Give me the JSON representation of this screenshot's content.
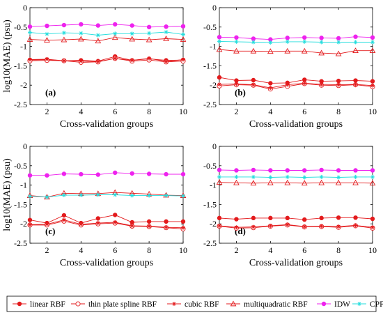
{
  "chart_data": [
    {
      "type": "line",
      "panel_label": "(a)",
      "xlabel": "Cross-validation groups",
      "ylabel": "log10(MAE) (psu)",
      "x": [
        1,
        2,
        3,
        4,
        5,
        6,
        7,
        8,
        9,
        10
      ],
      "xlim": [
        1,
        10
      ],
      "ylim": [
        -2.5,
        0
      ],
      "x_ticks": [
        "2",
        "4",
        "6",
        "8",
        "10"
      ],
      "y_ticks": [
        "0",
        "-0.5",
        "-1",
        "-1.5",
        "-2",
        "-2.5"
      ],
      "series": [
        {
          "name": "linear RBF",
          "values": [
            -1.35,
            -1.34,
            -1.37,
            -1.36,
            -1.38,
            -1.26,
            -1.36,
            -1.32,
            -1.36,
            -1.35
          ]
        },
        {
          "name": "thin plate spline RBF",
          "values": [
            -1.37,
            -1.36,
            -1.37,
            -1.41,
            -1.4,
            -1.31,
            -1.38,
            -1.35,
            -1.4,
            -1.38
          ]
        },
        {
          "name": "cubic RBF",
          "values": [
            -1.34,
            -1.33,
            -1.37,
            -1.38,
            -1.39,
            -1.31,
            -1.36,
            -1.31,
            -1.39,
            -1.34
          ]
        },
        {
          "name": "multiquadratic RBF",
          "values": [
            -0.82,
            -0.84,
            -0.83,
            -0.81,
            -0.86,
            -0.77,
            -0.81,
            -0.83,
            -0.8,
            -0.82
          ]
        },
        {
          "name": "IDW",
          "values": [
            -0.49,
            -0.47,
            -0.45,
            -0.43,
            -0.46,
            -0.43,
            -0.46,
            -0.5,
            -0.49,
            -0.48
          ]
        },
        {
          "name": "CPF",
          "values": [
            -0.64,
            -0.68,
            -0.65,
            -0.66,
            -0.71,
            -0.67,
            -0.67,
            -0.66,
            -0.63,
            -0.69
          ]
        }
      ]
    },
    {
      "type": "line",
      "panel_label": "(b)",
      "xlabel": "Cross-validation groups",
      "ylabel": "",
      "x": [
        1,
        2,
        3,
        4,
        5,
        6,
        7,
        8,
        9,
        10
      ],
      "xlim": [
        1,
        10
      ],
      "ylim": [
        -2.5,
        0
      ],
      "x_ticks": [
        "2",
        "4",
        "6",
        "8",
        "10"
      ],
      "y_ticks": [
        "0",
        "-0.5",
        "-1",
        "-1.5",
        "-2",
        "-2.5"
      ],
      "series": [
        {
          "name": "linear RBF",
          "values": [
            -1.8,
            -1.88,
            -1.87,
            -1.95,
            -1.94,
            -1.86,
            -1.9,
            -1.89,
            -1.88,
            -1.9
          ]
        },
        {
          "name": "thin plate spline RBF",
          "values": [
            -2.02,
            -1.99,
            -2.0,
            -2.1,
            -2.03,
            -1.96,
            -2.0,
            -2.01,
            -1.99,
            -2.04
          ]
        },
        {
          "name": "cubic RBF",
          "values": [
            -1.98,
            -1.97,
            -1.99,
            -2.07,
            -1.99,
            -1.95,
            -1.98,
            -1.99,
            -1.98,
            -2.01
          ]
        },
        {
          "name": "multiquadratic RBF",
          "values": [
            -1.08,
            -1.12,
            -1.12,
            -1.13,
            -1.12,
            -1.12,
            -1.17,
            -1.19,
            -1.11,
            -1.11
          ]
        },
        {
          "name": "IDW",
          "values": [
            -0.76,
            -0.77,
            -0.8,
            -0.82,
            -0.78,
            -0.77,
            -0.78,
            -0.79,
            -0.75,
            -0.77
          ]
        },
        {
          "name": "CPF",
          "values": [
            -0.87,
            -0.88,
            -0.89,
            -0.9,
            -0.88,
            -0.88,
            -0.89,
            -0.89,
            -0.89,
            -0.89
          ]
        }
      ]
    },
    {
      "type": "line",
      "panel_label": "(c)",
      "xlabel": "Cross-validation groups",
      "ylabel": "log10(MAE) (psu)",
      "x": [
        1,
        2,
        3,
        4,
        5,
        6,
        7,
        8,
        9,
        10
      ],
      "xlim": [
        1,
        10
      ],
      "ylim": [
        -2.5,
        0
      ],
      "x_ticks": [
        "2",
        "4",
        "6",
        "8",
        "10"
      ],
      "y_ticks": [
        "0",
        "-0.5",
        "-1",
        "-1.5",
        "-2",
        "-2.5"
      ],
      "series": [
        {
          "name": "linear RBF",
          "values": [
            -1.9,
            -1.98,
            -1.78,
            -1.98,
            -1.86,
            -1.77,
            -1.96,
            -1.94,
            -1.94,
            -1.94
          ]
        },
        {
          "name": "thin plate spline RBF",
          "values": [
            -2.03,
            -2.03,
            -1.93,
            -2.03,
            -2.0,
            -1.98,
            -2.06,
            -2.07,
            -2.1,
            -2.13
          ]
        },
        {
          "name": "cubic RBF",
          "values": [
            -2.02,
            -2.01,
            -1.9,
            -2.01,
            -1.98,
            -1.96,
            -2.05,
            -2.06,
            -2.09,
            -2.1
          ]
        },
        {
          "name": "multiquadratic RBF",
          "values": [
            -1.27,
            -1.31,
            -1.21,
            -1.22,
            -1.22,
            -1.19,
            -1.21,
            -1.23,
            -1.26,
            -1.27
          ]
        },
        {
          "name": "IDW",
          "values": [
            -0.75,
            -0.75,
            -0.71,
            -0.72,
            -0.73,
            -0.68,
            -0.7,
            -0.71,
            -0.72,
            -0.72
          ]
        },
        {
          "name": "CPF",
          "values": [
            -1.29,
            -1.31,
            -1.26,
            -1.26,
            -1.25,
            -1.25,
            -1.27,
            -1.27,
            -1.27,
            -1.28
          ]
        }
      ]
    },
    {
      "type": "line",
      "panel_label": "(d)",
      "xlabel": "Cross-validation groups",
      "ylabel": "",
      "x": [
        1,
        2,
        3,
        4,
        5,
        6,
        7,
        8,
        9,
        10
      ],
      "xlim": [
        1,
        10
      ],
      "ylim": [
        -2.5,
        0
      ],
      "x_ticks": [
        "2",
        "4",
        "6",
        "8",
        "10"
      ],
      "y_ticks": [
        "0",
        "-0.5",
        "-1",
        "-1.5",
        "-2",
        "-2.5"
      ],
      "series": [
        {
          "name": "linear RBF",
          "values": [
            -1.85,
            -1.88,
            -1.85,
            -1.85,
            -1.85,
            -1.89,
            -1.85,
            -1.84,
            -1.84,
            -1.87
          ]
        },
        {
          "name": "thin plate spline RBF",
          "values": [
            -2.06,
            -2.11,
            -2.1,
            -2.06,
            -2.03,
            -2.08,
            -2.07,
            -2.09,
            -2.05,
            -2.11
          ]
        },
        {
          "name": "cubic RBF",
          "values": [
            -2.05,
            -2.09,
            -2.08,
            -2.05,
            -2.02,
            -2.07,
            -2.06,
            -2.07,
            -2.04,
            -2.09
          ]
        },
        {
          "name": "multiquadratic RBF",
          "values": [
            -0.93,
            -0.94,
            -0.95,
            -0.94,
            -0.94,
            -0.95,
            -0.94,
            -0.94,
            -0.94,
            -0.95
          ]
        },
        {
          "name": "IDW",
          "values": [
            -0.61,
            -0.62,
            -0.61,
            -0.62,
            -0.62,
            -0.62,
            -0.61,
            -0.62,
            -0.62,
            -0.62
          ]
        },
        {
          "name": "CPF",
          "values": [
            -0.79,
            -0.79,
            -0.79,
            -0.8,
            -0.79,
            -0.8,
            -0.79,
            -0.8,
            -0.79,
            -0.79
          ]
        }
      ]
    }
  ],
  "legend": [
    {
      "label": "linear RBF",
      "color": "#e31a1c",
      "marker": "filled-circle"
    },
    {
      "label": "thin plate spline RBF",
      "color": "#e31a1c",
      "marker": "open-circle"
    },
    {
      "label": "cubic RBF",
      "color": "#e31a1c",
      "marker": "asterisk"
    },
    {
      "label": "multiquadratic RBF",
      "color": "#e31a1c",
      "marker": "open-triangle"
    },
    {
      "label": "IDW",
      "color": "#ee22ee",
      "marker": "filled-circle"
    },
    {
      "label": "CPF",
      "color": "#22dddd",
      "marker": "asterisk"
    }
  ]
}
